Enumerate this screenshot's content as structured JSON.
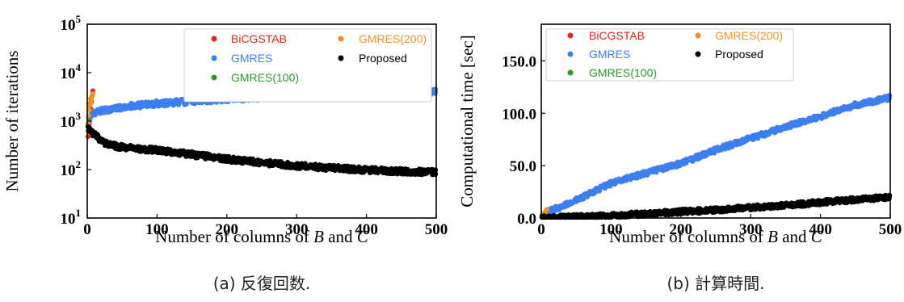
{
  "colors": {
    "bicgstab": "#e8231b",
    "gmres": "#3d7ff0",
    "gmres100": "#2a9a2a",
    "gmres200": "#f7901e",
    "proposed": "#000000"
  },
  "chart_data": [
    {
      "type": "scatter",
      "caption": "(a) 反復回数.",
      "xlabel_parts": [
        "Number of columns of ",
        "B",
        " and ",
        "C"
      ],
      "ylabel": "Number of iterations",
      "y_scale": "log",
      "xlim": [
        0,
        500
      ],
      "ylim": [
        10,
        100000
      ],
      "x_ticks": [
        0,
        100,
        200,
        300,
        400,
        500
      ],
      "y_ticks": [
        {
          "value": 10,
          "base": "10",
          "exp": "1"
        },
        {
          "value": 100,
          "base": "10",
          "exp": "2"
        },
        {
          "value": 1000,
          "base": "10",
          "exp": "3"
        },
        {
          "value": 10000,
          "base": "10",
          "exp": "4"
        },
        {
          "value": 100000,
          "base": "10",
          "exp": "5"
        }
      ],
      "legend_position": "top-right",
      "series": [
        {
          "name": "BiCGSTAB",
          "key": "bicgstab",
          "points": [
            [
              1,
              480
            ],
            [
              2,
              620
            ],
            [
              3,
              900
            ],
            [
              4,
              1300
            ],
            [
              5,
              1800
            ],
            [
              6,
              2500
            ],
            [
              7,
              3300
            ],
            [
              8,
              4200
            ]
          ]
        },
        {
          "name": "GMRES",
          "key": "gmres",
          "points": [
            [
              1,
              650
            ],
            [
              5,
              1250
            ],
            [
              10,
              1500
            ],
            [
              25,
              1700
            ],
            [
              50,
              1950
            ],
            [
              100,
              2300
            ],
            [
              150,
              2550
            ],
            [
              200,
              2850
            ],
            [
              250,
              3100
            ],
            [
              300,
              3350
            ],
            [
              350,
              3550
            ],
            [
              400,
              3750
            ],
            [
              450,
              3950
            ],
            [
              500,
              4100
            ]
          ]
        },
        {
          "name": "GMRES(100)",
          "key": "gmres100",
          "points": [
            [
              1,
              800
            ],
            [
              2,
              1200
            ],
            [
              3,
              1700
            ],
            [
              4,
              2300
            ],
            [
              5,
              2900
            ]
          ]
        },
        {
          "name": "GMRES(200)",
          "key": "gmres200",
          "points": [
            [
              1,
              900
            ],
            [
              2,
              1300
            ],
            [
              3,
              1700
            ],
            [
              4,
              2100
            ],
            [
              5,
              2500
            ],
            [
              6,
              2900
            ],
            [
              7,
              3300
            ],
            [
              8,
              3700
            ]
          ]
        },
        {
          "name": "Proposed",
          "key": "proposed",
          "points": [
            [
              1,
              680
            ],
            [
              5,
              620
            ],
            [
              10,
              520
            ],
            [
              20,
              400
            ],
            [
              30,
              330
            ],
            [
              50,
              290
            ],
            [
              75,
              270
            ],
            [
              100,
              250
            ],
            [
              150,
              205
            ],
            [
              200,
              165
            ],
            [
              250,
              140
            ],
            [
              300,
              120
            ],
            [
              350,
              108
            ],
            [
              400,
              98
            ],
            [
              450,
              92
            ],
            [
              500,
              88
            ]
          ]
        }
      ]
    },
    {
      "type": "scatter",
      "caption": "(b) 計算時間.",
      "xlabel_parts": [
        "Number of columns of ",
        "B",
        " and ",
        "C"
      ],
      "ylabel": "Computational time [sec]",
      "y_scale": "linear",
      "xlim": [
        0,
        500
      ],
      "ylim": [
        0,
        185
      ],
      "x_ticks": [
        0,
        100,
        200,
        300,
        400,
        500
      ],
      "y_ticks": [
        {
          "value": 0,
          "label": "0.0"
        },
        {
          "value": 50,
          "label": "50.0"
        },
        {
          "value": 100,
          "label": "100.0"
        },
        {
          "value": 150,
          "label": "150.0"
        }
      ],
      "legend_position": "top-left",
      "series": [
        {
          "name": "BiCGSTAB",
          "key": "bicgstab",
          "points": [
            [
              1,
              0.5
            ],
            [
              2,
              1
            ],
            [
              3,
              1.5
            ],
            [
              4,
              2
            ],
            [
              5,
              2.5
            ],
            [
              6,
              3
            ],
            [
              7,
              3.5
            ],
            [
              8,
              4
            ]
          ]
        },
        {
          "name": "GMRES",
          "key": "gmres",
          "points": [
            [
              0,
              2
            ],
            [
              10,
              6
            ],
            [
              50,
              17
            ],
            [
              100,
              33
            ],
            [
              150,
              43
            ],
            [
              200,
              52
            ],
            [
              250,
              65
            ],
            [
              300,
              76
            ],
            [
              350,
              87
            ],
            [
              400,
              97
            ],
            [
              450,
              108
            ],
            [
              500,
              115
            ]
          ]
        },
        {
          "name": "GMRES(100)",
          "key": "gmres100",
          "points": [
            [
              1,
              0.5
            ],
            [
              2,
              1
            ],
            [
              3,
              1.5
            ],
            [
              4,
              2
            ],
            [
              5,
              2.5
            ]
          ]
        },
        {
          "name": "GMRES(200)",
          "key": "gmres200",
          "points": [
            [
              1,
              1
            ],
            [
              2,
              2
            ],
            [
              3,
              3
            ],
            [
              4,
              4
            ],
            [
              5,
              5
            ],
            [
              6,
              6
            ],
            [
              7,
              7
            ],
            [
              8,
              8
            ]
          ]
        },
        {
          "name": "Proposed",
          "key": "proposed",
          "points": [
            [
              0,
              0
            ],
            [
              50,
              1
            ],
            [
              100,
              2.5
            ],
            [
              150,
              4
            ],
            [
              200,
              6
            ],
            [
              250,
              7.5
            ],
            [
              300,
              10
            ],
            [
              350,
              12
            ],
            [
              400,
              15
            ],
            [
              450,
              17.5
            ],
            [
              500,
              20
            ]
          ]
        }
      ]
    }
  ]
}
